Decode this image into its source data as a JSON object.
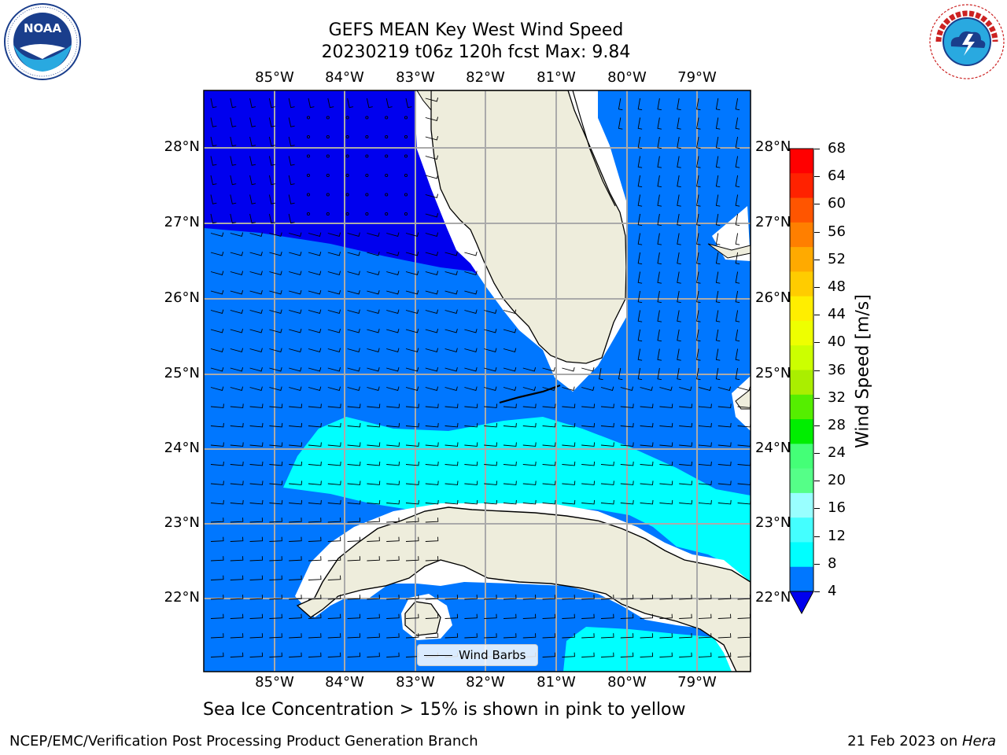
{
  "title": {
    "line1": "GEFS MEAN Key West Wind Speed",
    "line2": "20230219 t06z 120h fcst   Max: 9.84"
  },
  "logos": {
    "left": {
      "name": "NOAA",
      "ring_text": "NATIONAL OCEANIC AND ATMOSPHERIC ADMINISTRATION · U.S. DEPARTMENT OF COMMERCE"
    },
    "right": {
      "name": "NATIONAL WEATHER SERVICE"
    }
  },
  "map": {
    "lon_labels": [
      "85°W",
      "84°W",
      "83°W",
      "82°W",
      "81°W",
      "80°W",
      "79°W"
    ],
    "lat_labels": [
      "28°N",
      "27°N",
      "26°N",
      "25°N",
      "24°N",
      "23°N",
      "22°N"
    ],
    "legend_label": "Wind Barbs",
    "colors": {
      "lt4": "#0000ee",
      "b4_8": "#0077ff",
      "b8_12": "#00ffff",
      "b12_16": "#44ffff",
      "land": "#eeeddc",
      "grid": "#aaaaaa"
    }
  },
  "colorbar": {
    "label": "Wind Speed [m/s]",
    "ticks": [
      "68",
      "64",
      "60",
      "56",
      "52",
      "48",
      "44",
      "40",
      "36",
      "32",
      "28",
      "24",
      "20",
      "16",
      "12",
      "8",
      "4"
    ],
    "bands": [
      "#ff0000",
      "#ff2200",
      "#ff5500",
      "#ff7f00",
      "#ffaa00",
      "#ffcc00",
      "#ffee00",
      "#eeff00",
      "#ccff00",
      "#aaee00",
      "#55ee00",
      "#00ee00",
      "#44ff77",
      "#55ff88",
      "#99ffff",
      "#44ffff",
      "#00ffff",
      "#0077ff"
    ],
    "under_color": "#0000ee"
  },
  "caption": "Sea Ice Concentration > 15% is shown in pink to yellow",
  "footer": {
    "left": "NCEP/EMC/Verification Post Processing Product Generation Branch",
    "right_prefix": "21 Feb 2023 on ",
    "right_host": "Hera"
  }
}
